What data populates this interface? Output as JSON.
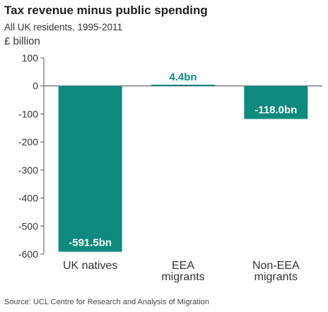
{
  "chart_data": {
    "type": "bar",
    "title": "Tax revenue minus public spending",
    "subtitle": "All UK residents, 1995-2011",
    "ylabel": "£ billion",
    "categories": [
      [
        "UK natives"
      ],
      [
        "EEA",
        "migrants"
      ],
      [
        "Non-EEA",
        "migrants"
      ]
    ],
    "values": [
      -591.5,
      4.4,
      -118.0
    ],
    "value_labels": [
      "-591.5bn",
      "4.4bn",
      "-118.0bn"
    ],
    "ylim": [
      -600,
      100
    ],
    "yticks": [
      100,
      0,
      -100,
      -200,
      -300,
      -400,
      -500,
      -600
    ],
    "grid": false,
    "bar_color": "#0e8a7f",
    "source": "Source: UCL Centre for Research and Analysis of Migration"
  }
}
